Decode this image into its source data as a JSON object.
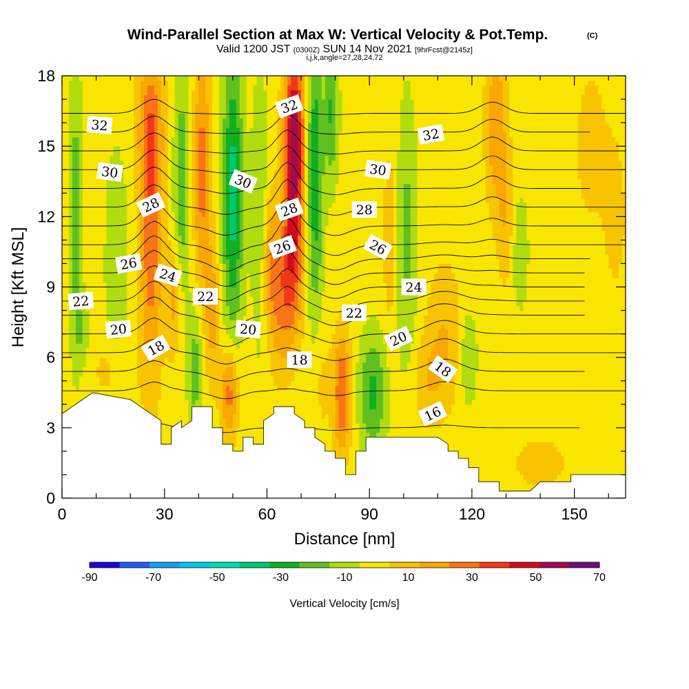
{
  "chart_data": {
    "type": "heatmap",
    "title": "Wind-Parallel Section at Max W: Vertical Velocity & Pot.Temp.",
    "title_mark": "(C)",
    "subtitle_parts": [
      "Valid 1200 JST ",
      "(0300Z)",
      " SUN 14 Nov 2021 ",
      "[9hrFcst@2145z]"
    ],
    "subtitle2": "i,j,k,angle=27,28,24,72",
    "xlabel": "Distance [nm]",
    "ylabel": "Height [Kft MSL]",
    "xlim": [
      0,
      165
    ],
    "ylim": [
      0,
      18
    ],
    "xticks": [
      0,
      30,
      60,
      90,
      120,
      150
    ],
    "yticks": [
      0,
      3,
      6,
      9,
      12,
      15,
      18
    ],
    "colorbar": {
      "label": "Vertical Velocity [cm/s]",
      "tick_labels": [
        -90,
        -70,
        -50,
        -30,
        -10,
        10,
        30,
        50,
        70
      ],
      "bounds": [
        -90,
        -80,
        -70,
        -60,
        -50,
        -40,
        -30,
        -20,
        -10,
        0,
        10,
        20,
        30,
        40,
        50,
        60,
        70
      ],
      "colors": [
        "#1f00e0",
        "#1e60f0",
        "#14a0f0",
        "#00c8e8",
        "#00dcb0",
        "#00c870",
        "#10b020",
        "#60c020",
        "#b0dc10",
        "#f8e600",
        "#f8c400",
        "#f8a800",
        "#f87418",
        "#f03818",
        "#d00c1c",
        "#a00c50",
        "#700c80"
      ]
    },
    "background_value": 5,
    "velocity_features": [
      {
        "x": 26,
        "y": 11,
        "sx": 3.2,
        "sy": 6,
        "w": 32
      },
      {
        "x": 26,
        "y": 16,
        "sx": 4,
        "sy": 3,
        "w": 22
      },
      {
        "x": 33,
        "y": 8.5,
        "sx": 2.5,
        "sy": 2.5,
        "w": 22
      },
      {
        "x": 4,
        "y": 12,
        "sx": 2,
        "sy": 6,
        "w": -22
      },
      {
        "x": 16,
        "y": 10,
        "sx": 3.5,
        "sy": 5,
        "w": -14
      },
      {
        "x": 35,
        "y": 13,
        "sx": 2.5,
        "sy": 6,
        "w": -22
      },
      {
        "x": 41,
        "y": 14,
        "sx": 2.5,
        "sy": 5,
        "w": 30
      },
      {
        "x": 44,
        "y": 8,
        "sx": 2,
        "sy": 3,
        "w": 20
      },
      {
        "x": 39,
        "y": 5.5,
        "sx": 2,
        "sy": 2.5,
        "w": -22
      },
      {
        "x": 50,
        "y": 13,
        "sx": 3,
        "sy": 6,
        "w": -40
      },
      {
        "x": 49,
        "y": 4.5,
        "sx": 2.5,
        "sy": 2,
        "w": 32
      },
      {
        "x": 58,
        "y": 12,
        "sx": 2.5,
        "sy": 6,
        "w": -16
      },
      {
        "x": 61,
        "y": 10,
        "sx": 2.5,
        "sy": 3,
        "w": 24
      },
      {
        "x": 64,
        "y": 8,
        "sx": 3,
        "sy": 3,
        "w": 15
      },
      {
        "x": 68,
        "y": 15,
        "sx": 3,
        "sy": 4.5,
        "w": 62
      },
      {
        "x": 67,
        "y": 9.5,
        "sx": 3.5,
        "sy": 3,
        "w": 28
      },
      {
        "x": 74,
        "y": 14,
        "sx": 2.5,
        "sy": 6,
        "w": -34
      },
      {
        "x": 79,
        "y": 16.5,
        "sx": 2,
        "sy": 3,
        "w": -26
      },
      {
        "x": 82,
        "y": 4.5,
        "sx": 2.5,
        "sy": 2.5,
        "w": 36
      },
      {
        "x": 76,
        "y": 5,
        "sx": 2.5,
        "sy": 2.5,
        "w": 8
      },
      {
        "x": 91,
        "y": 4.5,
        "sx": 4,
        "sy": 2.5,
        "w": -28
      },
      {
        "x": 101,
        "y": 11,
        "sx": 3,
        "sy": 6,
        "w": -18
      },
      {
        "x": 96,
        "y": 11,
        "sx": 2,
        "sy": 4,
        "w": 12
      },
      {
        "x": 112,
        "y": 7,
        "sx": 5,
        "sy": 3,
        "w": 14
      },
      {
        "x": 119,
        "y": 6,
        "sx": 2.5,
        "sy": 2,
        "w": -16
      },
      {
        "x": 127,
        "y": 16,
        "sx": 3,
        "sy": 3.5,
        "w": 24
      },
      {
        "x": 130,
        "y": 12,
        "sx": 2.5,
        "sy": 3,
        "w": 14
      },
      {
        "x": 134,
        "y": 10.5,
        "sx": 2.5,
        "sy": 2.5,
        "w": -14
      },
      {
        "x": 15,
        "y": 5.5,
        "sx": 6,
        "sy": 1.5,
        "w": 10
      },
      {
        "x": 6,
        "y": 7,
        "sx": 2,
        "sy": 1.5,
        "w": -12
      },
      {
        "x": 107,
        "y": 5,
        "sx": 5,
        "sy": 2,
        "w": 12
      },
      {
        "x": 140,
        "y": 1.5,
        "sx": 8,
        "sy": 1.2,
        "w": 10
      },
      {
        "x": 155,
        "y": 15,
        "sx": 6,
        "sy": 4,
        "w": 8
      },
      {
        "x": 162,
        "y": 12,
        "sx": 3,
        "sy": 3,
        "w": 10
      }
    ],
    "theta_levels": [
      16,
      17,
      18,
      19,
      20,
      21,
      22,
      23,
      24,
      25,
      26,
      27,
      28,
      29,
      30,
      31,
      32,
      33
    ],
    "theta_level_heights": [
      3.0,
      4.6,
      5.4,
      6.2,
      7.0,
      7.8,
      8.4,
      9.0,
      9.6,
      10.2,
      10.8,
      11.6,
      12.4,
      13.2,
      14.0,
      14.8,
      15.6,
      16.4
    ],
    "theta_perturbations": [
      {
        "x": 27,
        "y": 12,
        "sx": 5,
        "sy": 7,
        "a": -1.0
      },
      {
        "x": 48,
        "y": 8,
        "sx": 6,
        "sy": 5,
        "a": 0.6
      },
      {
        "x": 66,
        "y": 13,
        "sx": 4,
        "sy": 5,
        "a": -1.2
      },
      {
        "x": 80,
        "y": 9,
        "sx": 6,
        "sy": 5,
        "a": 0.5
      },
      {
        "x": 112,
        "y": 7,
        "sx": 7,
        "sy": 3,
        "a": -0.6
      },
      {
        "x": 126,
        "y": 15,
        "sx": 5,
        "sy": 4,
        "a": -0.6
      }
    ],
    "contour_labels": [
      {
        "text": "32",
        "x": 11,
        "y": 15.9,
        "angle": 5
      },
      {
        "text": "30",
        "x": 14,
        "y": 13.9,
        "angle": 8
      },
      {
        "text": "28",
        "x": 26,
        "y": 12.5,
        "angle": -25
      },
      {
        "text": "26",
        "x": 19.5,
        "y": 10.0,
        "angle": -10
      },
      {
        "text": "24",
        "x": 31,
        "y": 9.5,
        "angle": 18
      },
      {
        "text": "22",
        "x": 5.5,
        "y": 8.4,
        "angle": -5
      },
      {
        "text": "20",
        "x": 16.5,
        "y": 7.2,
        "angle": -5
      },
      {
        "text": "18",
        "x": 27.5,
        "y": 6.4,
        "angle": -30
      },
      {
        "text": "22",
        "x": 42,
        "y": 8.6,
        "angle": 0
      },
      {
        "text": "20",
        "x": 54.5,
        "y": 7.2,
        "angle": 5
      },
      {
        "text": "18",
        "x": 69.5,
        "y": 5.9,
        "angle": 0
      },
      {
        "text": "30",
        "x": 53,
        "y": 13.5,
        "angle": 22
      },
      {
        "text": "32",
        "x": 66.5,
        "y": 16.7,
        "angle": -20
      },
      {
        "text": "28",
        "x": 66.5,
        "y": 12.3,
        "angle": -20
      },
      {
        "text": "26",
        "x": 64.5,
        "y": 10.7,
        "angle": -20
      },
      {
        "text": "30",
        "x": 92.5,
        "y": 14.0,
        "angle": 8
      },
      {
        "text": "28",
        "x": 88.5,
        "y": 12.3,
        "angle": 0
      },
      {
        "text": "26",
        "x": 92.5,
        "y": 10.7,
        "angle": 28
      },
      {
        "text": "24",
        "x": 103,
        "y": 9.0,
        "angle": 0
      },
      {
        "text": "22",
        "x": 85.5,
        "y": 7.9,
        "angle": 0
      },
      {
        "text": "20",
        "x": 98.5,
        "y": 6.8,
        "angle": -25
      },
      {
        "text": "18",
        "x": 111.5,
        "y": 5.5,
        "angle": 35
      },
      {
        "text": "16",
        "x": 108.5,
        "y": 3.6,
        "angle": -25
      },
      {
        "text": "32",
        "x": 108,
        "y": 15.5,
        "angle": -10
      }
    ],
    "terrain_steps": [
      [
        0,
        3.6
      ],
      [
        3,
        3.9
      ],
      [
        6,
        4.2
      ],
      [
        9,
        4.5
      ],
      [
        20,
        4.2
      ],
      [
        23,
        3.9
      ],
      [
        26,
        3.6
      ],
      [
        29,
        3.3
      ],
      [
        29,
        3.0
      ],
      [
        29,
        2.3
      ],
      [
        32,
        2.3
      ],
      [
        32,
        3.0
      ],
      [
        35,
        3.3
      ],
      [
        35,
        3.0
      ],
      [
        38,
        3.3
      ],
      [
        38,
        3.9
      ],
      [
        44,
        3.9
      ],
      [
        44,
        3.0
      ],
      [
        47,
        3.0
      ],
      [
        47,
        2.3
      ],
      [
        50,
        2.3
      ],
      [
        50,
        2.0
      ],
      [
        53,
        2.0
      ],
      [
        53,
        2.6
      ],
      [
        56,
        2.6
      ],
      [
        56,
        2.3
      ],
      [
        59,
        2.3
      ],
      [
        59,
        3.3
      ],
      [
        62,
        3.6
      ],
      [
        62,
        3.9
      ],
      [
        68,
        3.9
      ],
      [
        68,
        3.6
      ],
      [
        71,
        3.3
      ],
      [
        71,
        3.0
      ],
      [
        74,
        3.0
      ],
      [
        74,
        2.6
      ],
      [
        77,
        2.3
      ],
      [
        77,
        2.0
      ],
      [
        80,
        2.0
      ],
      [
        80,
        1.7
      ],
      [
        83,
        1.7
      ],
      [
        83,
        1.0
      ],
      [
        86,
        1.0
      ],
      [
        86,
        2.0
      ],
      [
        89,
        2.0
      ],
      [
        89,
        2.6
      ],
      [
        92,
        2.6
      ],
      [
        110,
        2.6
      ],
      [
        113,
        2.3
      ],
      [
        113,
        2.0
      ],
      [
        116,
        2.0
      ],
      [
        116,
        1.7
      ],
      [
        119,
        1.7
      ],
      [
        119,
        1.3
      ],
      [
        122,
        1.3
      ],
      [
        122,
        0.7
      ],
      [
        128,
        0.7
      ],
      [
        128,
        0.3
      ],
      [
        137,
        0.3
      ],
      [
        140,
        0.7
      ],
      [
        149,
        0.7
      ],
      [
        149,
        1.0
      ],
      [
        155,
        1.0
      ],
      [
        165,
        1.0
      ]
    ]
  }
}
